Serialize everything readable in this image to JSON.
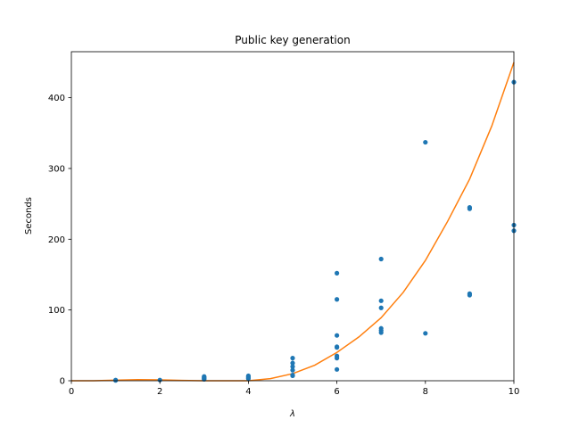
{
  "chart_data": {
    "type": "scatter",
    "title": "Public key generation",
    "xlabel": "λ",
    "ylabel": "Seconds",
    "xlim": [
      0,
      10
    ],
    "ylim": [
      0,
      465
    ],
    "xticks": [
      "0",
      "2",
      "4",
      "6",
      "8",
      "10"
    ],
    "yticks": [
      "0",
      "100",
      "200",
      "300",
      "400"
    ],
    "grid": false,
    "colors": {
      "points": "#1f77b4",
      "fit": "#ff7f0e"
    },
    "series": [
      {
        "kind": "scatter",
        "points": [
          [
            1,
            0.5
          ],
          [
            1,
            1
          ],
          [
            2,
            1
          ],
          [
            3,
            2
          ],
          [
            3,
            3
          ],
          [
            3,
            4
          ],
          [
            3,
            5
          ],
          [
            3,
            6
          ],
          [
            4,
            3
          ],
          [
            4,
            4
          ],
          [
            4,
            5
          ],
          [
            4,
            6
          ],
          [
            4,
            7
          ],
          [
            5,
            7
          ],
          [
            5,
            8
          ],
          [
            5,
            15
          ],
          [
            5,
            20
          ],
          [
            5,
            25
          ],
          [
            5,
            32
          ],
          [
            6,
            16
          ],
          [
            6,
            32
          ],
          [
            6,
            35
          ],
          [
            6,
            47
          ],
          [
            6,
            48
          ],
          [
            6,
            64
          ],
          [
            6,
            115
          ],
          [
            6,
            152
          ],
          [
            7,
            68
          ],
          [
            7,
            71
          ],
          [
            7,
            74
          ],
          [
            7,
            103
          ],
          [
            7,
            113
          ],
          [
            7,
            172
          ],
          [
            8,
            67
          ],
          [
            8,
            337
          ],
          [
            9,
            121
          ],
          [
            9,
            123
          ],
          [
            9,
            243
          ],
          [
            9,
            245
          ],
          [
            10,
            212
          ],
          [
            10,
            220
          ],
          [
            10,
            422
          ]
        ]
      },
      {
        "kind": "line",
        "x": [
          0,
          0.5,
          1,
          1.5,
          2,
          2.5,
          3,
          3.5,
          4,
          4.5,
          5,
          5.5,
          6,
          6.5,
          7,
          7.5,
          8,
          8.5,
          9,
          9.5,
          10
        ],
        "y": [
          0,
          0,
          0.8,
          1.5,
          1.2,
          0.4,
          0,
          0,
          0,
          3,
          10,
          22,
          40,
          62,
          89,
          125,
          170,
          225,
          285,
          360,
          450
        ]
      }
    ]
  }
}
